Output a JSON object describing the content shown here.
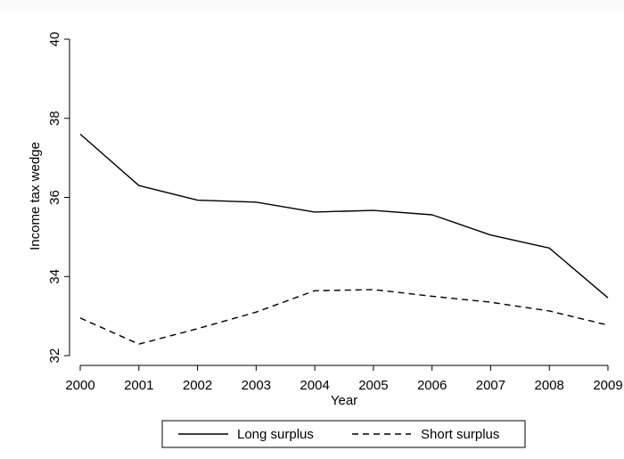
{
  "chart_data": {
    "type": "line",
    "title": "",
    "xlabel": "Year",
    "ylabel": "Income tax wedge",
    "x": [
      2000,
      2001,
      2002,
      2003,
      2004,
      2005,
      2006,
      2007,
      2008,
      2009
    ],
    "xticks": [
      "2000",
      "2001",
      "2002",
      "2003",
      "2004",
      "2005",
      "2006",
      "2007",
      "2008",
      "2009"
    ],
    "yticks": [
      "32",
      "34",
      "36",
      "38",
      "40"
    ],
    "ylim": [
      32,
      40
    ],
    "grid": false,
    "legend_position": "bottom",
    "series": [
      {
        "name": "Long surplus",
        "style": "solid",
        "color": "#000000",
        "values": [
          37.6,
          36.3,
          35.93,
          35.88,
          35.63,
          35.67,
          35.56,
          35.05,
          34.72,
          33.46
        ]
      },
      {
        "name": "Short surplus",
        "style": "dashed",
        "color": "#000000",
        "values": [
          32.95,
          32.29,
          32.68,
          33.1,
          33.64,
          33.67,
          33.5,
          33.35,
          33.13,
          32.77
        ]
      }
    ]
  }
}
